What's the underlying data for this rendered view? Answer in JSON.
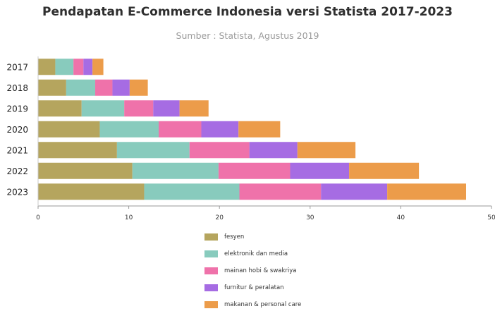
{
  "chart_data": {
    "type": "bar",
    "orientation": "horizontal",
    "stacked": true,
    "title": "Pendapatan E-Commerce Indonesia versi Statista 2017-2023",
    "subtitle": "Sumber : Statista, Agustus 2019",
    "categories": [
      "2017",
      "2018",
      "2019",
      "2020",
      "2021",
      "2022",
      "2023"
    ],
    "xlim": [
      0,
      50
    ],
    "xticks": [
      "0",
      "10",
      "20",
      "30",
      "40",
      "50"
    ],
    "grid": false,
    "legend_position": "bottom",
    "series": [
      {
        "name": "fesyen",
        "color": "#b5a55e",
        "values": [
          1.9,
          3.1,
          4.8,
          6.8,
          8.7,
          10.4,
          11.7
        ]
      },
      {
        "name": "elektronik dan media",
        "color": "#88cbbd",
        "values": [
          2.0,
          3.2,
          4.7,
          6.5,
          8.0,
          9.5,
          10.5
        ]
      },
      {
        "name": "mainan hobi & swakriya",
        "color": "#ef72aa",
        "values": [
          1.1,
          1.9,
          3.2,
          4.7,
          6.6,
          7.9,
          9.0
        ]
      },
      {
        "name": "furnitur & peralatan",
        "color": "#a66ce3",
        "values": [
          1.0,
          1.9,
          2.9,
          4.1,
          5.3,
          6.5,
          7.3
        ]
      },
      {
        "name": "makanan & personal care",
        "color": "#ec9c4a",
        "values": [
          1.2,
          2.0,
          3.2,
          4.6,
          6.4,
          7.7,
          8.7
        ]
      }
    ]
  }
}
